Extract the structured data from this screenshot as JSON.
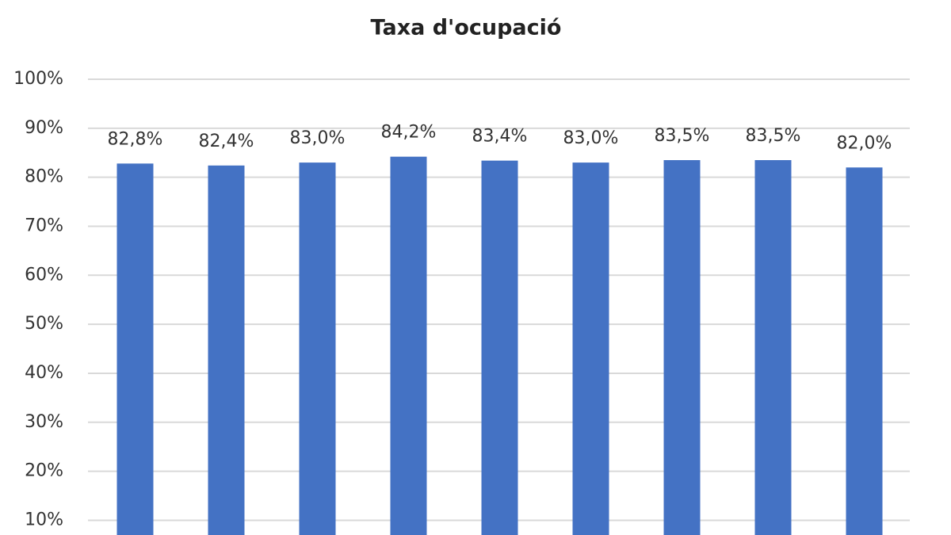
{
  "chart_data": {
    "type": "bar",
    "title": "Taxa d'ocupació",
    "categories": [
      null,
      null,
      null,
      null,
      null,
      null,
      null,
      null,
      null
    ],
    "values": [
      82.8,
      82.4,
      83.0,
      84.2,
      83.4,
      83.0,
      83.5,
      83.5,
      82.0
    ],
    "value_labels": [
      "82,8%",
      "82,4%",
      "83,0%",
      "84,2%",
      "83,4%",
      "83,0%",
      "83,5%",
      "83,5%",
      "82,0%"
    ],
    "color": "#4472c4",
    "ylim": [
      7,
      100
    ],
    "yticks": [
      {
        "value": 10,
        "label": "10%"
      },
      {
        "value": 20,
        "label": "20%"
      },
      {
        "value": 30,
        "label": "30%"
      },
      {
        "value": 40,
        "label": "40%"
      },
      {
        "value": 50,
        "label": "50%"
      },
      {
        "value": 60,
        "label": "60%"
      },
      {
        "value": 70,
        "label": "70%"
      },
      {
        "value": 80,
        "label": "80%"
      },
      {
        "value": 90,
        "label": "90%"
      },
      {
        "value": 100,
        "label": "100%"
      }
    ],
    "grid": true
  }
}
